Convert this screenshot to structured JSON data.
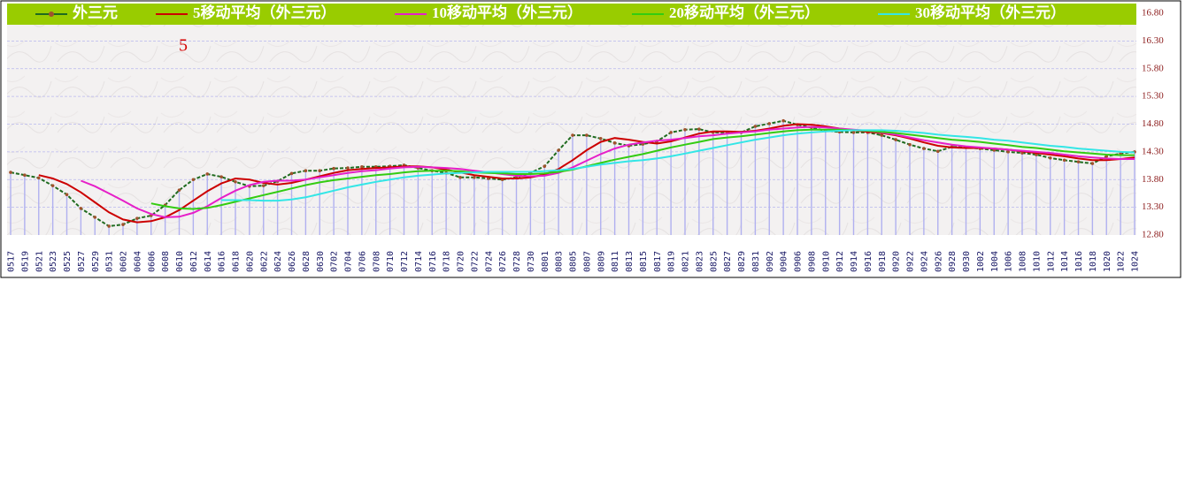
{
  "chart_data": {
    "type": "line",
    "annotations": [
      "5"
    ],
    "categories": [
      "0517",
      "0519",
      "0521",
      "0523",
      "0525",
      "0527",
      "0529",
      "0531",
      "0602",
      "0604",
      "0606",
      "0608",
      "0610",
      "0612",
      "0614",
      "0616",
      "0618",
      "0620",
      "0622",
      "0624",
      "0626",
      "0628",
      "0630",
      "0702",
      "0704",
      "0706",
      "0708",
      "0710",
      "0712",
      "0714",
      "0716",
      "0718",
      "0720",
      "0722",
      "0724",
      "0726",
      "0728",
      "0730",
      "0801",
      "0803",
      "0805",
      "0807",
      "0809",
      "0811",
      "0813",
      "0815",
      "0817",
      "0819",
      "0821",
      "0823",
      "0825",
      "0827",
      "0829",
      "0831",
      "0902",
      "0904",
      "0906",
      "0908",
      "0910",
      "0912",
      "0914",
      "0916",
      "0918",
      "0920",
      "0922",
      "0924",
      "0926",
      "0928",
      "0930",
      "1002",
      "1004",
      "1006",
      "1008",
      "1010",
      "1012",
      "1014",
      "1016",
      "1018",
      "1020",
      "1022",
      "1024"
    ],
    "series": [
      {
        "name": "外三元",
        "color": "#1f6b1f",
        "markers": true,
        "drop_lines": true,
        "values": [
          13.93,
          13.88,
          13.83,
          13.69,
          13.53,
          13.28,
          13.12,
          12.96,
          12.99,
          13.1,
          13.15,
          13.34,
          13.61,
          13.8,
          13.9,
          13.85,
          13.76,
          13.68,
          13.69,
          13.77,
          13.91,
          13.96,
          13.96,
          14.0,
          14.01,
          14.03,
          14.03,
          14.04,
          14.06,
          14.01,
          13.96,
          13.92,
          13.84,
          13.84,
          13.82,
          13.8,
          13.84,
          13.92,
          14.04,
          14.33,
          14.6,
          14.6,
          14.54,
          14.46,
          14.41,
          14.44,
          14.49,
          14.65,
          14.7,
          14.71,
          14.65,
          14.65,
          14.65,
          14.76,
          14.81,
          14.86,
          14.79,
          14.74,
          14.68,
          14.66,
          14.65,
          14.65,
          14.6,
          14.52,
          14.43,
          14.36,
          14.31,
          14.39,
          14.38,
          14.36,
          14.33,
          14.3,
          14.28,
          14.25,
          14.19,
          14.15,
          14.12,
          14.09,
          14.22,
          14.27,
          14.3
        ]
      },
      {
        "name": "5移动平均（外三元）",
        "color": "#cc0000",
        "values": [
          null,
          null,
          13.88,
          13.82,
          13.72,
          13.57,
          13.39,
          13.21,
          13.08,
          13.03,
          13.05,
          13.12,
          13.25,
          13.42,
          13.59,
          13.73,
          13.82,
          13.8,
          13.74,
          13.71,
          13.74,
          13.8,
          13.86,
          13.92,
          13.97,
          13.99,
          14.01,
          14.02,
          14.04,
          14.04,
          14.02,
          13.98,
          13.93,
          13.88,
          13.85,
          13.82,
          13.82,
          13.84,
          13.89,
          13.99,
          14.15,
          14.33,
          14.48,
          14.55,
          14.52,
          14.48,
          14.45,
          14.49,
          14.56,
          14.63,
          14.67,
          14.67,
          14.66,
          14.68,
          14.72,
          14.77,
          14.8,
          14.79,
          14.76,
          14.72,
          14.69,
          14.66,
          14.64,
          14.6,
          14.54,
          14.47,
          14.41,
          14.38,
          14.37,
          14.37,
          14.36,
          14.34,
          14.31,
          14.28,
          14.25,
          14.22,
          14.18,
          14.15,
          14.15,
          14.17,
          14.2
        ]
      },
      {
        "name": "10移动平均（外三元）",
        "color": "#e61fc8",
        "values": [
          null,
          null,
          null,
          null,
          null,
          13.78,
          13.68,
          13.55,
          13.42,
          13.28,
          13.18,
          13.12,
          13.13,
          13.2,
          13.32,
          13.47,
          13.6,
          13.7,
          13.76,
          13.78,
          13.78,
          13.8,
          13.84,
          13.88,
          13.92,
          13.95,
          13.97,
          14.0,
          14.02,
          14.03,
          14.02,
          14.01,
          13.99,
          13.96,
          13.93,
          13.9,
          13.87,
          13.86,
          13.87,
          13.92,
          14.02,
          14.14,
          14.26,
          14.36,
          14.43,
          14.47,
          14.5,
          14.52,
          14.55,
          14.58,
          14.6,
          14.63,
          14.65,
          14.67,
          14.7,
          14.72,
          14.74,
          14.75,
          14.74,
          14.72,
          14.7,
          14.68,
          14.65,
          14.61,
          14.56,
          14.51,
          14.47,
          14.43,
          14.4,
          14.38,
          14.36,
          14.34,
          14.32,
          14.3,
          14.28,
          14.25,
          14.22,
          14.2,
          14.18,
          14.17,
          14.17
        ]
      },
      {
        "name": "20移动平均（外三元）",
        "color": "#33cc11",
        "values": [
          null,
          null,
          null,
          null,
          null,
          null,
          null,
          null,
          null,
          null,
          13.37,
          13.32,
          13.28,
          13.27,
          13.29,
          13.34,
          13.4,
          13.46,
          13.52,
          13.58,
          13.64,
          13.7,
          13.75,
          13.79,
          13.82,
          13.85,
          13.88,
          13.9,
          13.93,
          13.95,
          13.96,
          13.96,
          13.95,
          13.93,
          13.92,
          13.91,
          13.9,
          13.9,
          13.91,
          13.94,
          13.98,
          14.04,
          14.1,
          14.16,
          14.21,
          14.26,
          14.32,
          14.38,
          14.43,
          14.48,
          14.53,
          14.56,
          14.58,
          14.61,
          14.64,
          14.67,
          14.69,
          14.7,
          14.7,
          14.7,
          14.69,
          14.68,
          14.66,
          14.64,
          14.61,
          14.58,
          14.55,
          14.52,
          14.5,
          14.48,
          14.45,
          14.42,
          14.39,
          14.37,
          14.34,
          14.31,
          14.29,
          14.27,
          14.25,
          14.24,
          14.24
        ]
      },
      {
        "name": "30移动平均（外三元）",
        "color": "#33e6e6",
        "values": [
          null,
          null,
          null,
          null,
          null,
          null,
          null,
          null,
          null,
          null,
          null,
          null,
          null,
          null,
          null,
          13.43,
          13.43,
          13.43,
          13.42,
          13.42,
          13.44,
          13.48,
          13.54,
          13.6,
          13.66,
          13.71,
          13.76,
          13.8,
          13.84,
          13.87,
          13.89,
          13.91,
          13.92,
          13.93,
          13.94,
          13.94,
          13.94,
          13.94,
          13.95,
          13.97,
          13.99,
          14.03,
          14.07,
          14.1,
          14.13,
          14.15,
          14.18,
          14.22,
          14.27,
          14.32,
          14.37,
          14.42,
          14.47,
          14.52,
          14.56,
          14.6,
          14.63,
          14.65,
          14.67,
          14.68,
          14.69,
          14.69,
          14.69,
          14.68,
          14.66,
          14.64,
          14.61,
          14.59,
          14.57,
          14.55,
          14.52,
          14.5,
          14.47,
          14.44,
          14.41,
          14.39,
          14.36,
          14.34,
          14.32,
          14.3,
          14.29
        ]
      }
    ],
    "ylim": [
      12.8,
      16.8
    ],
    "yticks": [
      {
        "value": 12.8,
        "label": "12.80"
      },
      {
        "value": 13.3,
        "label": "13.30"
      },
      {
        "value": 13.8,
        "label": "13.80"
      },
      {
        "value": 14.3,
        "label": "14.30"
      },
      {
        "value": 14.8,
        "label": "14.80"
      },
      {
        "value": 15.3,
        "label": "15.30"
      },
      {
        "value": 15.8,
        "label": "15.80"
      },
      {
        "value": 16.3,
        "label": "16.30"
      },
      {
        "value": 16.8,
        "label": "16.80"
      }
    ],
    "grid": true,
    "y_axis_side": "right",
    "legend": "top"
  }
}
